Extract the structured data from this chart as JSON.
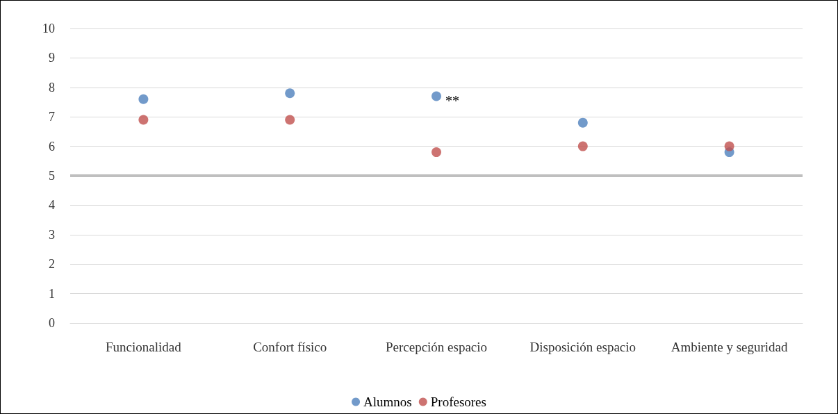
{
  "chart_data": {
    "type": "scatter",
    "categories": [
      "Funcionalidad",
      "Confort físico",
      "Percepción espacio",
      "Disposición espacio",
      "Ambiente y seguridad"
    ],
    "series": [
      {
        "name": "Alumnos",
        "color": "#4f81bd",
        "values": [
          7.6,
          7.8,
          7.7,
          6.8,
          5.8
        ]
      },
      {
        "name": "Profesores",
        "color": "#c0504d",
        "values": [
          6.9,
          6.9,
          5.8,
          6.0,
          6.0
        ]
      }
    ],
    "ylim": [
      0,
      10
    ],
    "yticks": [
      0,
      1,
      2,
      3,
      4,
      5,
      6,
      7,
      8,
      9,
      10
    ],
    "grid": "y",
    "legend": "bottom",
    "marker": "circle",
    "ref_lines": [
      {
        "axis": "y",
        "value": 5,
        "color": "#bfbfbf"
      }
    ],
    "annotations": [
      {
        "text": "**",
        "x": "Percepción espacio",
        "y": 7.7
      }
    ]
  }
}
